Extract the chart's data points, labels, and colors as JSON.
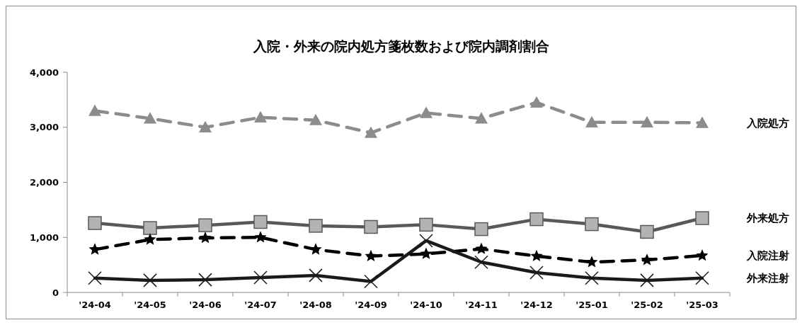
{
  "chart_data": {
    "type": "line",
    "title": "入院・外来の院内処方箋枚数および院内調剤割合",
    "categories": [
      "'24-04",
      "'24-05",
      "'24-06",
      "'24-07",
      "'24-08",
      "'24-09",
      "'24-10",
      "'24-11",
      "'24-12",
      "'25-01",
      "'25-02",
      "'25-03"
    ],
    "ylim": [
      0,
      4000
    ],
    "yticks": [
      {
        "value": 0,
        "label": "0"
      },
      {
        "value": 1000,
        "label": "1,000"
      },
      {
        "value": 2000,
        "label": "2,000"
      },
      {
        "value": 3000,
        "label": "3,000"
      },
      {
        "value": 4000,
        "label": "4,000"
      }
    ],
    "grid": false,
    "legend": false,
    "series": [
      {
        "name": "入院処方",
        "color": "#8c8c8c",
        "marker": "triangle",
        "line_style": "dashed",
        "values": [
          3300,
          3160,
          3000,
          3180,
          3130,
          2900,
          3260,
          3160,
          3450,
          3090,
          3090,
          3080
        ]
      },
      {
        "name": "外来処方",
        "color": "#595959",
        "marker": "square",
        "line_style": "solid",
        "values": [
          1260,
          1170,
          1220,
          1280,
          1210,
          1190,
          1230,
          1150,
          1330,
          1240,
          1100,
          1350
        ]
      },
      {
        "name": "入院注射",
        "color": "#000000",
        "marker": "star",
        "line_style": "dashed",
        "values": [
          780,
          960,
          990,
          1000,
          780,
          660,
          700,
          790,
          660,
          550,
          590,
          670
        ]
      },
      {
        "name": "外来注射",
        "color": "#1a1a1a",
        "marker": "cross",
        "line_style": "solid",
        "values": [
          260,
          220,
          230,
          270,
          310,
          200,
          940,
          550,
          360,
          260,
          220,
          260
        ]
      }
    ]
  }
}
